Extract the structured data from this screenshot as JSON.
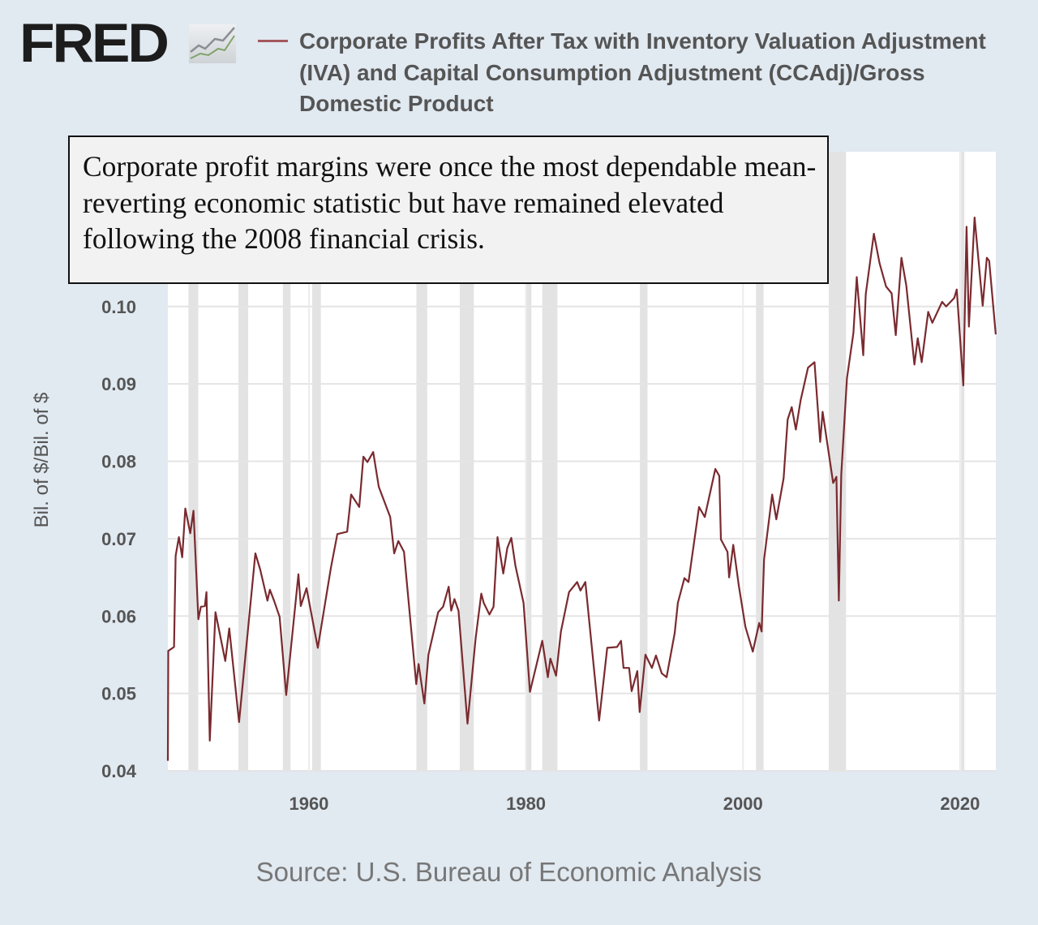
{
  "header": {
    "logo_text": "FRED",
    "logo_icon": "line-chart-icon",
    "title": "Corporate Profits After Tax with Inventory Valuation Adjustment (IVA) and Capital Consumption Adjustment (CCAdj)/Gross Domestic Product"
  },
  "annotation": "Corporate profit margins were once the most dependable mean-reverting economic statistic but have remained elevated following the 2008 financial crisis.",
  "source": "Source: U.S. Bureau of Economic Analysis",
  "colors": {
    "line": "#7a2a2f",
    "recession": "#e3e3e3",
    "background": "#e1e9f1",
    "legend_line": "#a5585d"
  },
  "chart_data": {
    "type": "line",
    "title": "Corporate Profits After Tax with Inventory Valuation Adjustment (IVA) and Capital Consumption Adjustment (CCAdj)/Gross Domestic Product",
    "ylabel": "Bil. of $/Bil. of $",
    "xlabel": "",
    "xlim": [
      1947,
      2023.3
    ],
    "ylim": [
      0.04,
      0.12
    ],
    "yticks": [
      "0.04",
      "0.05",
      "0.06",
      "0.07",
      "0.08",
      "0.09",
      "0.10"
    ],
    "xticks": [
      "1960",
      "1980",
      "2000",
      "2020"
    ],
    "grid": true,
    "legend": "top",
    "recessions": [
      [
        1948.9,
        1949.8
      ],
      [
        1953.5,
        1954.4
      ],
      [
        1957.6,
        1958.3
      ],
      [
        1960.3,
        1961.1
      ],
      [
        1969.9,
        1970.9
      ],
      [
        1973.9,
        1975.2
      ],
      [
        1980.0,
        1980.5
      ],
      [
        1981.5,
        1982.9
      ],
      [
        1990.5,
        1991.2
      ],
      [
        2001.2,
        2001.9
      ],
      [
        2007.9,
        2009.5
      ],
      [
        2020.1,
        2020.4
      ]
    ],
    "series": [
      {
        "x": [
          1947.0,
          1947.04,
          1947.57,
          1947.72,
          1948.02,
          1948.32,
          1948.61,
          1949.06,
          1949.36,
          1949.81,
          1950.04,
          1950.41,
          1950.56,
          1950.86,
          1951.39,
          1952.29,
          1952.66,
          1953.56,
          1954.16,
          1955.06,
          1955.51,
          1956.18,
          1956.4,
          1956.78,
          1957.3,
          1957.9,
          1959.03,
          1959.25,
          1959.78,
          1960.82,
          1962.02,
          1962.62,
          1963.52,
          1963.89,
          1964.64,
          1965.02,
          1965.39,
          1965.92,
          1966.44,
          1967.49,
          1967.86,
          1968.24,
          1968.76,
          1969.89,
          1970.11,
          1970.64,
          1971.01,
          1971.91,
          1972.36,
          1972.88,
          1973.11,
          1973.41,
          1973.78,
          1974.61,
          1975.36,
          1975.88,
          1976.11,
          1976.63,
          1977.01,
          1977.38,
          1977.91,
          1978.28,
          1978.65,
          1979.03,
          1979.78,
          1980.37,
          1981.5,
          1982.02,
          1982.25,
          1982.77,
          1983.22,
          1983.97,
          1984.72,
          1985.02,
          1985.47,
          1986.74,
          1987.49,
          1988.39,
          1988.76,
          1988.99,
          1989.51,
          1989.74,
          1990.26,
          1990.48,
          1991.01,
          1991.61,
          1991.98,
          1992.51,
          1992.96,
          1993.71,
          1994.0,
          1994.6,
          1994.98,
          1995.95,
          1996.48,
          1997.45,
          1997.82,
          1997.97,
          1998.57,
          1998.72,
          1999.1,
          1999.62,
          2000.22,
          2000.9,
          2001.49,
          2001.72,
          2001.94,
          2002.69,
          2003.07,
          2003.74,
          2004.12,
          2004.49,
          2004.87,
          2005.31,
          2005.99,
          2006.59,
          2007.11,
          2007.34,
          2008.31,
          2008.61,
          2008.83,
          2009.06,
          2009.58,
          2010.18,
          2010.48,
          2011.08,
          2011.31,
          2012.06,
          2012.58,
          2013.18,
          2013.7,
          2014.08,
          2014.6,
          2015.05,
          2015.8,
          2016.1,
          2016.47,
          2017.07,
          2017.45,
          2018.35,
          2018.72,
          2019.47,
          2019.7,
          2020.3,
          2020.6,
          2020.82,
          2021.34,
          2022.09,
          2022.47,
          2022.69,
          2023.29
        ],
        "y": [
          0.0413,
          0.0555,
          0.056,
          0.0678,
          0.0702,
          0.0676,
          0.0739,
          0.0707,
          0.0736,
          0.0596,
          0.0612,
          0.0613,
          0.0631,
          0.0439,
          0.0605,
          0.0542,
          0.0584,
          0.0463,
          0.055,
          0.0681,
          0.066,
          0.062,
          0.0634,
          0.062,
          0.0599,
          0.0498,
          0.0654,
          0.0613,
          0.0636,
          0.0559,
          0.0662,
          0.0706,
          0.0709,
          0.0757,
          0.0741,
          0.0806,
          0.0799,
          0.0812,
          0.0767,
          0.0728,
          0.0681,
          0.0697,
          0.0683,
          0.0512,
          0.0538,
          0.0487,
          0.055,
          0.0605,
          0.0612,
          0.0638,
          0.0607,
          0.0622,
          0.0607,
          0.0461,
          0.0571,
          0.0629,
          0.0617,
          0.0602,
          0.0612,
          0.0702,
          0.0655,
          0.0688,
          0.0701,
          0.0665,
          0.0617,
          0.0502,
          0.0568,
          0.0521,
          0.0545,
          0.0523,
          0.058,
          0.0631,
          0.0644,
          0.0633,
          0.0644,
          0.0465,
          0.0559,
          0.056,
          0.0568,
          0.0533,
          0.0533,
          0.0503,
          0.0529,
          0.0476,
          0.055,
          0.0533,
          0.0549,
          0.0526,
          0.0521,
          0.0578,
          0.0617,
          0.0649,
          0.0644,
          0.0741,
          0.0728,
          0.079,
          0.0781,
          0.0699,
          0.0683,
          0.065,
          0.0692,
          0.0639,
          0.0586,
          0.0554,
          0.0591,
          0.058,
          0.0673,
          0.0757,
          0.0725,
          0.0778,
          0.0854,
          0.087,
          0.0841,
          0.0879,
          0.0921,
          0.0928,
          0.0825,
          0.0864,
          0.0772,
          0.078,
          0.062,
          0.0783,
          0.0907,
          0.0966,
          0.1038,
          0.0937,
          0.1016,
          0.1094,
          0.1056,
          0.1026,
          0.1017,
          0.0963,
          0.1063,
          0.1027,
          0.0925,
          0.0959,
          0.0928,
          0.0993,
          0.0979,
          0.1006,
          0.1,
          0.1011,
          0.1022,
          0.0898,
          0.1103,
          0.0974,
          0.1115,
          0.1001,
          0.1063,
          0.1059,
          0.0964
        ]
      }
    ]
  }
}
